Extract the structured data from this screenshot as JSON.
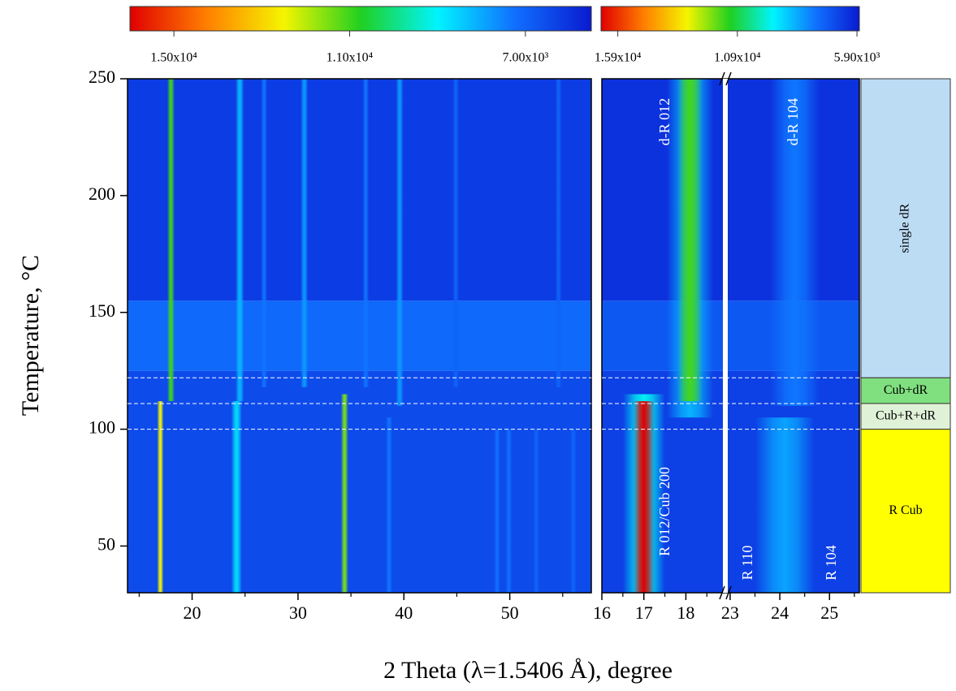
{
  "chart_data": {
    "type": "heatmap",
    "ylabel": "Temperature, °C",
    "xlabel": "2 Theta (λ=1.5406 Å), degree",
    "ylim": [
      30,
      250
    ],
    "yticks": [
      50,
      100,
      150,
      200,
      250
    ],
    "colormap": [
      "#e00000",
      "#ff7f00",
      "#f5f500",
      "#20d020",
      "#00f4ff",
      "#1070ff",
      "#0a1ad0"
    ],
    "dashed_lines": [
      100,
      111,
      122
    ],
    "panels": [
      {
        "colorbar": {
          "clim": [
            16000,
            5500
          ],
          "ticks": [
            {
              "value": 15000,
              "label": "1.50x10⁴"
            },
            {
              "value": 11000,
              "label": "1.10x10⁴"
            },
            {
              "value": 7000,
              "label": "7.00x10³"
            }
          ]
        },
        "segments": [
          {
            "xlim": [
              13.9,
              57.7
            ],
            "xticks": [
              20,
              30,
              40,
              50
            ],
            "xminorticks": [
              15,
              25,
              35,
              45,
              55
            ]
          }
        ],
        "backgrounds": [
          {
            "tmin": 30,
            "tmax": 125,
            "intensity": 6500
          },
          {
            "tmin": 125,
            "tmax": 155,
            "intensity": 7100
          },
          {
            "tmin": 155,
            "tmax": 250,
            "intensity": 6200
          }
        ],
        "peaks": [
          {
            "theta": 17.0,
            "width": 0.3,
            "tmin": 30,
            "tmax": 112,
            "intensity": 12500
          },
          {
            "theta": 18.0,
            "width": 0.35,
            "tmin": 112,
            "tmax": 250,
            "intensity": 11000
          },
          {
            "theta": 24.2,
            "width": 0.5,
            "tmin": 30,
            "tmax": 112,
            "intensity": 8700
          },
          {
            "theta": 24.5,
            "width": 0.4,
            "tmin": 112,
            "tmax": 250,
            "intensity": 8200
          },
          {
            "theta": 26.8,
            "width": 0.3,
            "tmin": 118,
            "tmax": 250,
            "intensity": 7300
          },
          {
            "theta": 30.6,
            "width": 0.35,
            "tmin": 118,
            "tmax": 250,
            "intensity": 7800
          },
          {
            "theta": 34.4,
            "width": 0.35,
            "tmin": 30,
            "tmax": 115,
            "intensity": 11500
          },
          {
            "theta": 36.4,
            "width": 0.3,
            "tmin": 118,
            "tmax": 250,
            "intensity": 7300
          },
          {
            "theta": 38.6,
            "width": 0.3,
            "tmin": 30,
            "tmax": 105,
            "intensity": 7300
          },
          {
            "theta": 39.6,
            "width": 0.35,
            "tmin": 110,
            "tmax": 250,
            "intensity": 7800
          },
          {
            "theta": 44.9,
            "width": 0.3,
            "tmin": 118,
            "tmax": 250,
            "intensity": 7000
          },
          {
            "theta": 48.8,
            "width": 0.3,
            "tmin": 30,
            "tmax": 100,
            "intensity": 7200
          },
          {
            "theta": 49.9,
            "width": 0.3,
            "tmin": 30,
            "tmax": 100,
            "intensity": 7200
          },
          {
            "theta": 52.5,
            "width": 0.3,
            "tmin": 30,
            "tmax": 100,
            "intensity": 7000
          },
          {
            "theta": 54.6,
            "width": 0.3,
            "tmin": 118,
            "tmax": 250,
            "intensity": 7000
          },
          {
            "theta": 56.0,
            "width": 0.3,
            "tmin": 30,
            "tmax": 100,
            "intensity": 7000
          }
        ]
      },
      {
        "colorbar": {
          "clim": [
            16600,
            5800
          ],
          "ticks": [
            {
              "value": 15900,
              "label": "1.59x10⁴"
            },
            {
              "value": 10900,
              "label": "1.09x10⁴"
            },
            {
              "value": 5900,
              "label": "5.90x10³"
            }
          ]
        },
        "segments": [
          {
            "xlim": [
              16,
              18.92
            ],
            "xticks": [
              16,
              17,
              18
            ],
            "xminorticks": [
              16.5,
              17.5,
              18.5
            ]
          },
          {
            "xlim": [
              22.92,
              25.6
            ],
            "xticks": [
              23,
              24,
              25
            ],
            "xminorticks": [
              23.5,
              24.5,
              25.5
            ]
          }
        ],
        "backgrounds": [
          {
            "tmin": 30,
            "tmax": 125,
            "intensity": 6600
          },
          {
            "tmin": 125,
            "tmax": 155,
            "intensity": 7100
          },
          {
            "tmin": 155,
            "tmax": 250,
            "intensity": 6300
          }
        ],
        "peaks": [
          {
            "theta": 17.0,
            "width": 0.5,
            "tmin": 30,
            "tmax": 115,
            "intensity": 9500
          },
          {
            "theta": 17.0,
            "width": 0.25,
            "tmin": 30,
            "tmax": 112,
            "intensity": 16600
          },
          {
            "theta": 18.1,
            "width": 0.55,
            "tmin": 105,
            "tmax": 250,
            "intensity": 8500
          },
          {
            "theta": 18.1,
            "width": 0.3,
            "tmin": 112,
            "tmax": 250,
            "intensity": 11500
          },
          {
            "theta": 24.1,
            "width": 0.6,
            "tmin": 30,
            "tmax": 105,
            "intensity": 8300
          },
          {
            "theta": 24.3,
            "width": 0.5,
            "tmin": 110,
            "tmax": 250,
            "intensity": 7700
          }
        ],
        "annotations": [
          "d-R 012",
          "d-R 104",
          "R 012/Cub 200",
          "R 110",
          "R 104"
        ]
      }
    ],
    "phases": [
      {
        "label": "single dR",
        "tmin": 122,
        "tmax": 250,
        "color": "#bcdcf4"
      },
      {
        "label": "Cub+dR",
        "tmin": 111,
        "tmax": 122,
        "color": "#80e080"
      },
      {
        "label": "Cub+R+dR",
        "tmin": 100,
        "tmax": 111,
        "color": "#dff2d8"
      },
      {
        "label": "R  Cub",
        "tmin": 30,
        "tmax": 100,
        "color": "#ffff00"
      }
    ]
  }
}
